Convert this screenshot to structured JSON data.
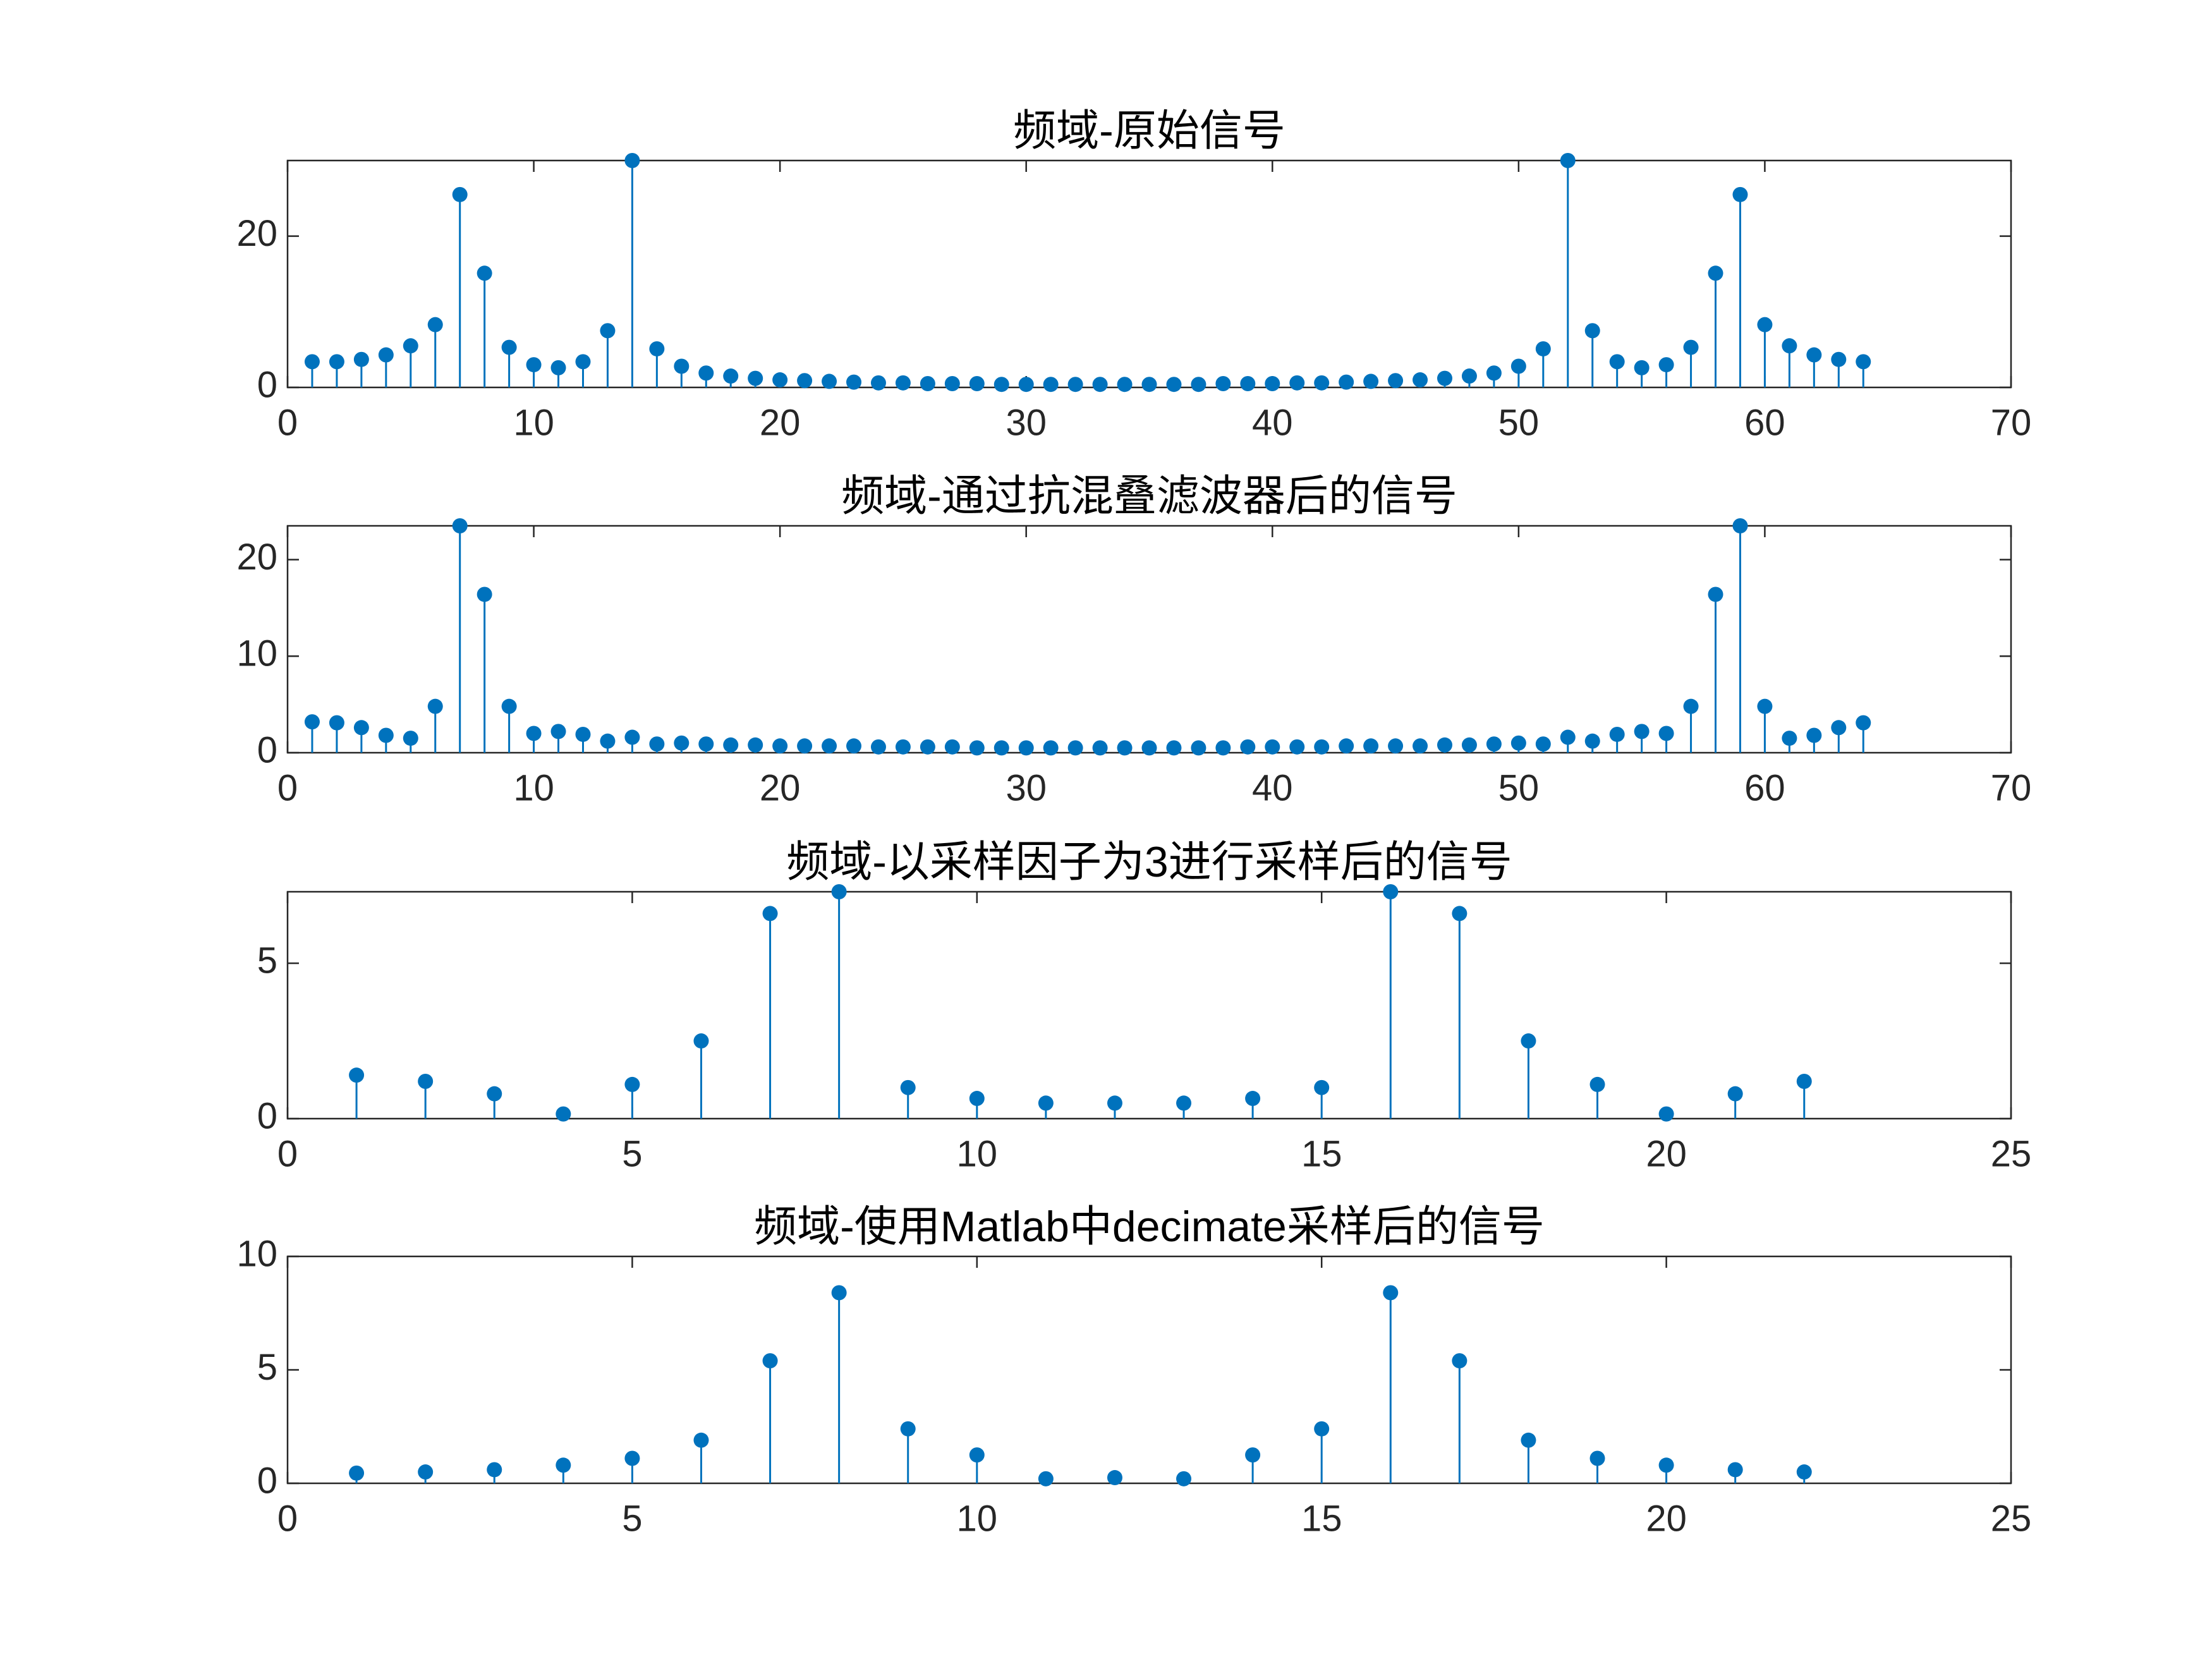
{
  "chart_data": [
    {
      "type": "stem",
      "title": "频域-原始信号",
      "color": "#0072bd",
      "x": [
        1,
        2,
        3,
        4,
        5,
        6,
        7,
        8,
        9,
        10,
        11,
        12,
        13,
        14,
        15,
        16,
        17,
        18,
        19,
        20,
        21,
        22,
        23,
        24,
        25,
        26,
        27,
        28,
        29,
        30,
        31,
        32,
        33,
        34,
        35,
        36,
        37,
        38,
        39,
        40,
        41,
        42,
        43,
        44,
        45,
        46,
        47,
        48,
        49,
        50,
        51,
        52,
        53,
        54,
        55,
        56,
        57,
        58,
        59,
        60,
        61,
        62,
        63,
        64
      ],
      "values": [
        3.4,
        3.4,
        3.7,
        4.3,
        5.5,
        8.3,
        25.5,
        15.1,
        5.3,
        3.0,
        2.6,
        3.4,
        7.5,
        30,
        5.1,
        2.8,
        1.9,
        1.5,
        1.2,
        1.0,
        0.9,
        0.8,
        0.7,
        0.6,
        0.6,
        0.5,
        0.5,
        0.5,
        0.4,
        0.4,
        0.4,
        0.4,
        0.4,
        0.4,
        0.4,
        0.4,
        0.4,
        0.5,
        0.5,
        0.5,
        0.6,
        0.6,
        0.7,
        0.8,
        0.9,
        1.0,
        1.2,
        1.5,
        1.9,
        2.8,
        5.1,
        30,
        7.5,
        3.4,
        2.6,
        3.0,
        5.3,
        15.1,
        25.5,
        8.3,
        5.5,
        4.3,
        3.7,
        3.4
      ],
      "xlim": [
        0,
        70
      ],
      "xticks": [
        0,
        10,
        20,
        30,
        40,
        50,
        60,
        70
      ],
      "ylim": [
        0,
        30
      ],
      "yticks": [
        0,
        20
      ]
    },
    {
      "type": "stem",
      "title": "频域-通过抗混叠滤波器后的信号",
      "color": "#0072bd",
      "x": [
        1,
        2,
        3,
        4,
        5,
        6,
        7,
        8,
        9,
        10,
        11,
        12,
        13,
        14,
        15,
        16,
        17,
        18,
        19,
        20,
        21,
        22,
        23,
        24,
        25,
        26,
        27,
        28,
        29,
        30,
        31,
        32,
        33,
        34,
        35,
        36,
        37,
        38,
        39,
        40,
        41,
        42,
        43,
        44,
        45,
        46,
        47,
        48,
        49,
        50,
        51,
        52,
        53,
        54,
        55,
        56,
        57,
        58,
        59,
        60,
        61,
        62,
        63,
        64
      ],
      "values": [
        3.2,
        3.1,
        2.6,
        1.8,
        1.5,
        4.8,
        23.5,
        16.4,
        4.8,
        2.0,
        2.2,
        1.9,
        1.2,
        1.6,
        0.9,
        1.0,
        0.9,
        0.8,
        0.8,
        0.7,
        0.7,
        0.7,
        0.7,
        0.6,
        0.6,
        0.6,
        0.6,
        0.5,
        0.5,
        0.5,
        0.5,
        0.5,
        0.5,
        0.5,
        0.5,
        0.5,
        0.5,
        0.5,
        0.6,
        0.6,
        0.6,
        0.6,
        0.7,
        0.7,
        0.7,
        0.7,
        0.8,
        0.8,
        0.9,
        1.0,
        0.9,
        1.6,
        1.2,
        1.9,
        2.2,
        2.0,
        4.8,
        16.4,
        23.5,
        4.8,
        1.5,
        1.8,
        2.6,
        3.1
      ],
      "xlim": [
        0,
        70
      ],
      "xticks": [
        0,
        10,
        20,
        30,
        40,
        50,
        60,
        70
      ],
      "ylim": [
        0,
        23.5
      ],
      "yticks": [
        0,
        10,
        20
      ]
    },
    {
      "type": "stem",
      "title": "频域-以采样因子为3进行采样后的信号",
      "color": "#0072bd",
      "x": [
        1,
        2,
        3,
        4,
        5,
        6,
        7,
        8,
        9,
        10,
        11,
        12,
        13,
        14,
        15,
        16,
        17,
        18,
        19,
        20,
        21,
        22
      ],
      "values": [
        1.4,
        1.2,
        0.8,
        0.15,
        1.1,
        2.5,
        6.6,
        7.3,
        1.0,
        0.65,
        0.5,
        0.5,
        0.5,
        0.65,
        1.0,
        7.3,
        6.6,
        2.5,
        1.1,
        0.15,
        0.8,
        1.2
      ],
      "xlim": [
        0,
        25
      ],
      "xticks": [
        0,
        5,
        10,
        15,
        20,
        25
      ],
      "ylim": [
        0,
        7.3
      ],
      "yticks": [
        0,
        5
      ]
    },
    {
      "type": "stem",
      "title": "频域-使用Matlab中decimate采样后的信号",
      "color": "#0072bd",
      "x": [
        1,
        2,
        3,
        4,
        5,
        6,
        7,
        8,
        9,
        10,
        11,
        12,
        13,
        14,
        15,
        16,
        17,
        18,
        19,
        20,
        21,
        22
      ],
      "values": [
        0.45,
        0.5,
        0.6,
        0.8,
        1.1,
        1.9,
        5.4,
        8.4,
        2.4,
        1.25,
        0.2,
        0.25,
        0.2,
        1.25,
        2.4,
        8.4,
        5.4,
        1.9,
        1.1,
        0.8,
        0.6,
        0.5
      ],
      "xlim": [
        0,
        25
      ],
      "xticks": [
        0,
        5,
        10,
        15,
        20,
        25
      ],
      "ylim": [
        0,
        10
      ],
      "yticks": [
        0,
        5,
        10
      ]
    }
  ]
}
